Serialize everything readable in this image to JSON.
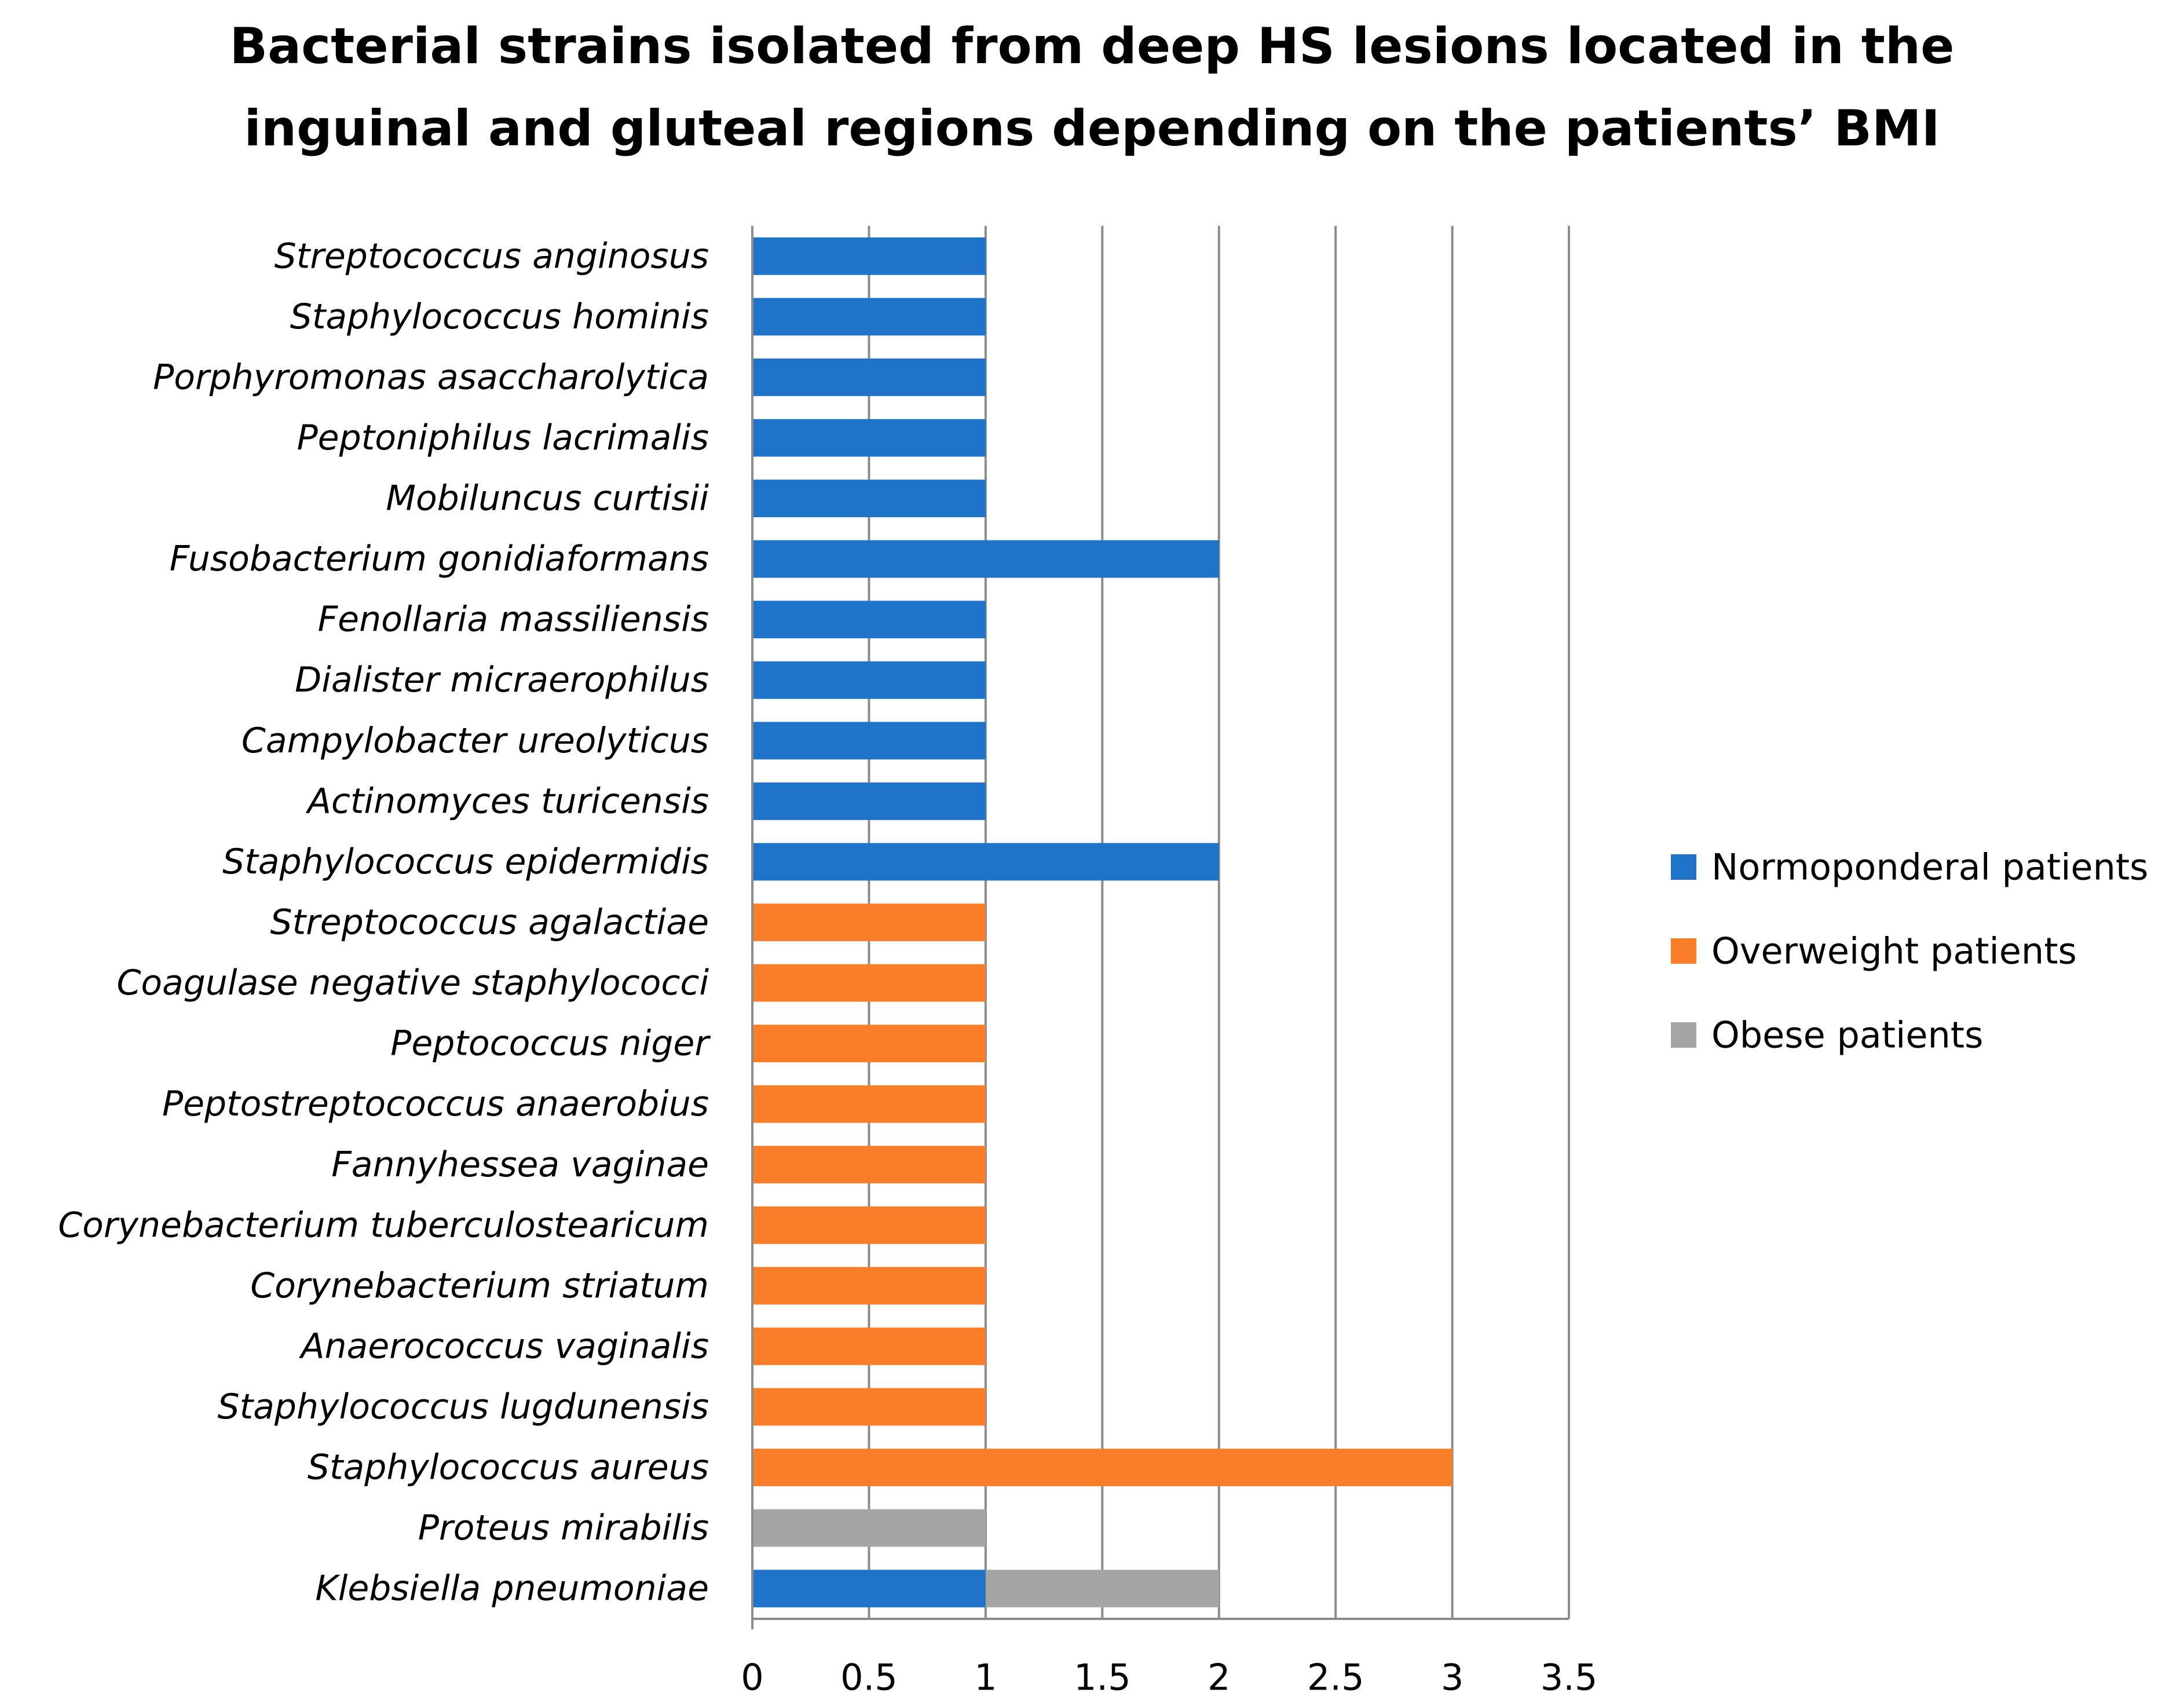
{
  "chart_data": {
    "type": "bar",
    "orientation": "horizontal",
    "stacked": true,
    "title": "Bacterial strains isolated from deep HS lesions located in the inguinal and gluteal regions depending on the patients’ BMI",
    "title_lines": [
      "Bacterial strains isolated from deep HS lesions located in the",
      "inguinal and gluteal regions depending on the patients’ BMI"
    ],
    "xlabel": "",
    "ylabel": "",
    "xlim": [
      0,
      3.5
    ],
    "x_ticks": [
      "0",
      "0.5",
      "1",
      "1.5",
      "2",
      "2.5",
      "3",
      "3.5"
    ],
    "grid": "vertical",
    "legend_position": "right",
    "categories": [
      "Streptococcus anginosus",
      "Staphylococcus hominis",
      "Porphyromonas asaccharolytica",
      "Peptoniphilus lacrimalis",
      "Mobiluncus curtisii",
      "Fusobacterium gonidiaformans",
      "Fenollaria massiliensis",
      "Dialister micraerophilus",
      "Campylobacter ureolyticus",
      "Actinomyces turicensis",
      "Staphylococcus epidermidis",
      "Streptococcus agalactiae",
      "Coagulase negative staphylococci",
      "Peptococcus niger",
      "Peptostreptococcus anaerobius",
      "Fannyhessea vaginae",
      "Corynebacterium tuberculostearicum",
      "Corynebacterium striatum",
      "Anaerococcus vaginalis",
      "Staphylococcus lugdunensis",
      "Staphylococcus aureus",
      "Proteus mirabilis",
      "Klebsiella pneumoniae"
    ],
    "series": [
      {
        "name": "Normoponderal patients",
        "color": "#1f73c8",
        "values": [
          1,
          1,
          1,
          1,
          1,
          2,
          1,
          1,
          1,
          1,
          2,
          0,
          0,
          0,
          0,
          0,
          0,
          0,
          0,
          0,
          0,
          0,
          1
        ]
      },
      {
        "name": "Overweight patients",
        "color": "#fa7e2a",
        "values": [
          0,
          0,
          0,
          0,
          0,
          0,
          0,
          0,
          0,
          0,
          0,
          1,
          1,
          1,
          1,
          1,
          1,
          1,
          1,
          1,
          3,
          0,
          0
        ]
      },
      {
        "name": "Obese patients",
        "color": "#a5a5a5",
        "values": [
          0,
          0,
          0,
          0,
          0,
          0,
          0,
          0,
          0,
          0,
          0,
          0,
          0,
          0,
          0,
          0,
          0,
          0,
          0,
          0,
          0,
          1,
          1
        ]
      }
    ]
  }
}
